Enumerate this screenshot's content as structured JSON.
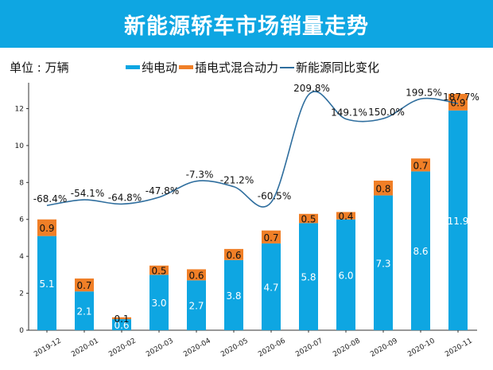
{
  "header": {
    "title": "新能源轿车市场销量走势"
  },
  "unit_label": "单位 : 万辆",
  "colors": {
    "banner": "#0ea6e2",
    "bev": "#0ea6e2",
    "phev": "#f07f27",
    "yoy": "#2f6e9e"
  },
  "legend": [
    {
      "label": "纯电动",
      "kind": "bar",
      "color": "#0ea6e2"
    },
    {
      "label": "插电式混合动力",
      "kind": "bar",
      "color": "#f07f27"
    },
    {
      "label": "新能源同比变化",
      "kind": "line",
      "color": "#2f6e9e"
    }
  ],
  "chart_data": {
    "type": "bar",
    "title": "新能源轿车市场销量走势",
    "xlabel": "",
    "ylabel": "单位 : 万辆",
    "categories": [
      "2019-12",
      "2020-01",
      "2020-02",
      "2020-03",
      "2020-04",
      "2020-05",
      "2020-06",
      "2020-07",
      "2020-08",
      "2020-09",
      "2020-10",
      "2020-11"
    ],
    "series": [
      {
        "name": "纯电动",
        "type": "bar",
        "stacked": true,
        "values": [
          5.1,
          2.1,
          0.6,
          3.0,
          2.7,
          3.8,
          4.7,
          5.8,
          6.0,
          7.3,
          8.6,
          11.9
        ]
      },
      {
        "name": "插电式混合动力",
        "type": "bar",
        "stacked": true,
        "values": [
          0.9,
          0.7,
          0.1,
          0.5,
          0.6,
          0.6,
          0.7,
          0.5,
          0.4,
          0.8,
          0.7,
          0.9
        ]
      },
      {
        "name": "新能源同比变化",
        "type": "line",
        "unit": "%",
        "secondary_axis": true,
        "values": [
          -68.4,
          -54.1,
          -64.8,
          -47.8,
          -7.3,
          -21.2,
          -60.5,
          209.8,
          149.1,
          150.0,
          199.5,
          187.7
        ]
      }
    ],
    "yticks": [
      0,
      2,
      4,
      6,
      8,
      10,
      12
    ],
    "ylim": [
      0,
      13.4
    ],
    "grid": false,
    "legend_position": "top"
  }
}
